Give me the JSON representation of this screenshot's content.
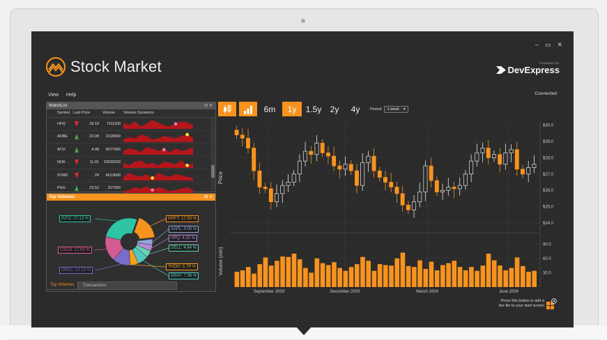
{
  "app": {
    "title": "Stock Market",
    "brand_powered": "POWERED BY",
    "brand_name": "DevExpress",
    "window_buttons": [
      "‒",
      "▭",
      "✕"
    ],
    "status": "Connected",
    "accent": "#f7931e"
  },
  "menu": [
    "View",
    "Help"
  ],
  "watchlist": {
    "title": "WatchList",
    "ctrls": "⊡ ✕",
    "columns": [
      "Symbol",
      "Last Price",
      "Volume",
      "Volume Dynamics"
    ],
    "rows": [
      {
        "symbol": "HPQ",
        "trend": "down",
        "price": "18.19",
        "volume": "7111100",
        "spark": [
          5,
          3,
          6,
          2,
          4,
          7,
          5,
          3,
          2,
          4,
          6,
          5,
          3
        ],
        "dot": 0.78,
        "dotcolor": "#ff6fa8"
      },
      {
        "symbol": "ADBE",
        "trend": "up",
        "price": "23.08",
        "volume": "2118600",
        "spark": [
          2,
          4,
          3,
          6,
          5,
          2,
          3,
          5,
          4,
          3,
          5,
          6,
          4
        ],
        "dot": 0.88,
        "dotcolor": "#f5e23a"
      },
      {
        "symbol": "ATVI",
        "trend": "up",
        "price": "4.08",
        "volume": "6077600",
        "spark": [
          3,
          5,
          4,
          2,
          6,
          5,
          3,
          4,
          2,
          5,
          3,
          4,
          6
        ],
        "dot": 0.6,
        "dotcolor": "#ff6fa8"
      },
      {
        "symbol": "NOK",
        "trend": "down",
        "price": "11.91",
        "volume": "10930200",
        "spark": [
          4,
          2,
          5,
          6,
          3,
          4,
          2,
          5,
          4,
          3,
          6,
          2,
          4
        ],
        "dot": 0.9,
        "dotcolor": "#f5e23a"
      },
      {
        "symbol": "SYMC",
        "trend": "down",
        "price": "24",
        "volume": "6613600",
        "spark": [
          3,
          6,
          4,
          3,
          5,
          2,
          6,
          4,
          3,
          5,
          4,
          3,
          2
        ],
        "dot": 0.38,
        "dotcolor": "#f5e23a"
      },
      {
        "symbol": "PHG",
        "trend": "up",
        "price": "23.52",
        "volume": "317000",
        "spark": [
          2,
          3,
          5,
          4,
          6,
          3,
          5,
          4,
          2,
          3,
          4,
          5,
          3
        ],
        "dot": 0.45,
        "dotcolor": "#ff6fa8"
      }
    ]
  },
  "top_volumes": {
    "title": "Top Volumes",
    "ctrls": "⊡ ✕",
    "tabs": [
      "Top Volumes",
      "Transactions"
    ],
    "slices": [
      {
        "label": "MSFT: 17.59 %",
        "value": 17.59,
        "color": "#f7931e"
      },
      {
        "label": "AAPL: 4.00 %",
        "value": 4.0,
        "color": "#8ea4d9"
      },
      {
        "label": "HPQ: 4.32 %",
        "value": 4.32,
        "color": "#b58bd8"
      },
      {
        "label": "DELL: 4.64 %",
        "value": 4.64,
        "color": "#66d3b5"
      },
      {
        "label": "EBAY: 7.36 %",
        "value": 7.36,
        "color": "#52c9c0"
      },
      {
        "label": "YHOO: 5.79 %",
        "value": 5.79,
        "color": "#f7a21e"
      },
      {
        "label": "ORCL: 12.13 %",
        "value": 12.13,
        "color": "#7a6cc9"
      },
      {
        "label": "CSCO: 17.05 %",
        "value": 17.05,
        "color": "#d65b94"
      },
      {
        "label": "INTC: 27.13 %",
        "value": 27.13,
        "color": "#2ec4a6"
      }
    ]
  },
  "toolbar": {
    "buttons": [
      "6m",
      "1y",
      "1.5y",
      "2y",
      "4y"
    ],
    "selected": "1y",
    "period_label": "Period:",
    "period_value": "1 week"
  },
  "footer": {
    "line1": "Press this button to add a",
    "line2": "live tile to your start screen"
  },
  "chart_data": {
    "type": "candlestick",
    "ylabel": "Price",
    "ylabel2": "Volume (mln)",
    "price_ticks": [
      "$30.0",
      "$29.0",
      "$28.0",
      "$27.0",
      "$26.0",
      "$25.0",
      "$24.0"
    ],
    "price_range": [
      23.7,
      30.2
    ],
    "volume_ticks": [
      "90.0",
      "60.0",
      "30.0"
    ],
    "volume_range": [
      0,
      105
    ],
    "x_labels": [
      "September 2003",
      "December 2003",
      "March 2004",
      "June 2004"
    ],
    "closes": [
      29.4,
      29.2,
      28.6,
      27.2,
      26.2,
      26.1,
      25.3,
      25.8,
      26.3,
      26.5,
      27.0,
      27.8,
      28.4,
      28.2,
      28.9,
      28.3,
      28.1,
      27.5,
      27.3,
      27.6,
      27.2,
      26.3,
      27.7,
      28.1,
      27.2,
      26.8,
      26.5,
      26.2,
      25.8,
      25.1,
      24.8,
      25.3,
      25.9,
      27.5,
      26.6,
      25.9,
      26.0,
      26.2,
      26.1,
      26.3,
      27.0,
      27.8,
      28.3,
      28.6,
      28.0,
      28.2,
      27.6,
      28.3,
      28.5,
      27.3,
      27.0,
      27.4,
      27.6
    ],
    "volumes": [
      32,
      35,
      42,
      28,
      48,
      62,
      45,
      55,
      64,
      63,
      70,
      58,
      40,
      30,
      60,
      50,
      46,
      52,
      40,
      34,
      42,
      48,
      63,
      55,
      34,
      48,
      46,
      45,
      60,
      72,
      44,
      42,
      56,
      38,
      53,
      35,
      46,
      50,
      55,
      42,
      35,
      42,
      34,
      45,
      70,
      56,
      45,
      35,
      40,
      62,
      44,
      32,
      34
    ]
  }
}
